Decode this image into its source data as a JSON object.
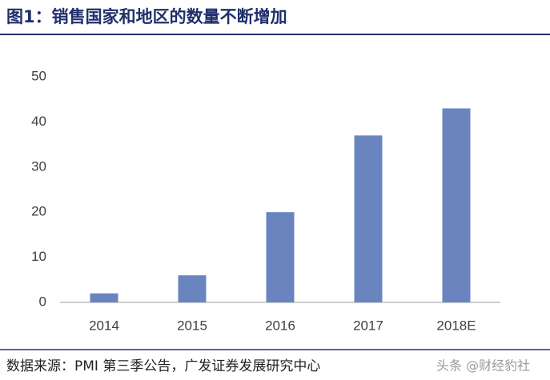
{
  "chart_data": {
    "type": "bar",
    "title": "图1：销售国家和地区的数量不断增加",
    "categories": [
      "2014",
      "2015",
      "2016",
      "2017",
      "2018E"
    ],
    "values": [
      2,
      6,
      20,
      37,
      43
    ],
    "color": "#6a84c0",
    "ylim": [
      0,
      50
    ],
    "yticks": [
      0,
      10,
      20,
      30,
      40,
      50
    ],
    "grid": false,
    "source": "数据来源：PMI 第三季公告，广发证券发展研究中心",
    "watermark": "头条 @财经豹社"
  }
}
